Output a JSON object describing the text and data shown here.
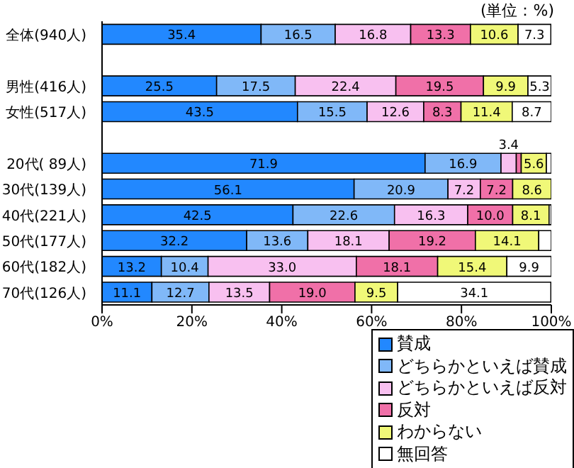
{
  "chart_data": {
    "type": "bar",
    "orientation": "horizontal",
    "stacked": true,
    "categories": [
      "全体(940人)",
      null,
      "男性(416人)",
      "女性(517人)",
      null,
      "20代( 89人)",
      "30代(139人)",
      "40代(221人)",
      "50代(177人)",
      "60代(182人)",
      "70代(126人)"
    ],
    "series": [
      {
        "name": "賛成",
        "color": "#2288ff",
        "values": [
          35.4,
          null,
          25.5,
          43.5,
          null,
          71.9,
          56.1,
          42.5,
          32.2,
          13.2,
          11.1
        ],
        "value_labels": [
          "35.4",
          null,
          "25.5",
          "43.5",
          null,
          "71.9",
          "56.1",
          "42.5",
          "32.2",
          "13.2",
          "11.1"
        ]
      },
      {
        "name": "どちらかといえば賛成",
        "color": "#80b8f8",
        "values": [
          16.5,
          null,
          17.5,
          15.5,
          null,
          16.9,
          20.9,
          22.6,
          13.6,
          10.4,
          12.7
        ],
        "value_labels": [
          "16.5",
          null,
          "17.5",
          "15.5",
          null,
          "16.9",
          "20.9",
          "22.6",
          "13.6",
          "10.4",
          "12.7"
        ]
      },
      {
        "name": "どちらかといえば反対",
        "color": "#f8c0f0",
        "values": [
          16.8,
          null,
          22.4,
          12.6,
          null,
          3.4,
          7.2,
          16.3,
          18.1,
          33.0,
          13.5
        ],
        "value_labels": [
          "16.8",
          null,
          "22.4",
          "12.6",
          null,
          "3.4",
          "7.2",
          "16.3",
          "18.1",
          "33.0",
          "13.5"
        ]
      },
      {
        "name": "反対",
        "color": "#f070a8",
        "values": [
          13.3,
          null,
          19.5,
          8.3,
          null,
          1.1,
          7.2,
          10.0,
          19.2,
          18.1,
          19.0
        ],
        "value_labels": [
          "13.3",
          null,
          "19.5",
          "8.3",
          null,
          null,
          "7.2",
          "10.0",
          "19.2",
          "18.1",
          "19.0"
        ]
      },
      {
        "name": "わからない",
        "color": "#f0f878",
        "values": [
          10.6,
          null,
          9.9,
          11.4,
          null,
          5.6,
          8.6,
          8.1,
          14.1,
          15.4,
          9.5
        ],
        "value_labels": [
          "10.6",
          null,
          "9.9",
          "11.4",
          null,
          "5.6",
          "8.6",
          "8.1",
          "14.1",
          "15.4",
          "9.5"
        ]
      },
      {
        "name": "無回答",
        "color": "#ffffff",
        "values": [
          7.3,
          null,
          5.3,
          8.7,
          null,
          1.1,
          0,
          0.5,
          2.8,
          9.9,
          34.1
        ],
        "value_labels": [
          "7.3",
          null,
          "5.3",
          "8.7",
          null,
          null,
          null,
          null,
          null,
          "9.9",
          "34.1"
        ]
      }
    ],
    "xlim": [
      0,
      100
    ],
    "xticks": [
      {
        "value": 0,
        "label": "0%"
      },
      {
        "value": 20,
        "label": "20%"
      },
      {
        "value": 40,
        "label": "40%"
      },
      {
        "value": 60,
        "label": "60%"
      },
      {
        "value": 80,
        "label": "80%"
      },
      {
        "value": 100,
        "label": "100%"
      }
    ],
    "annotations": [
      "(単位：%)"
    ],
    "legend": "bottom right",
    "grid": false
  }
}
